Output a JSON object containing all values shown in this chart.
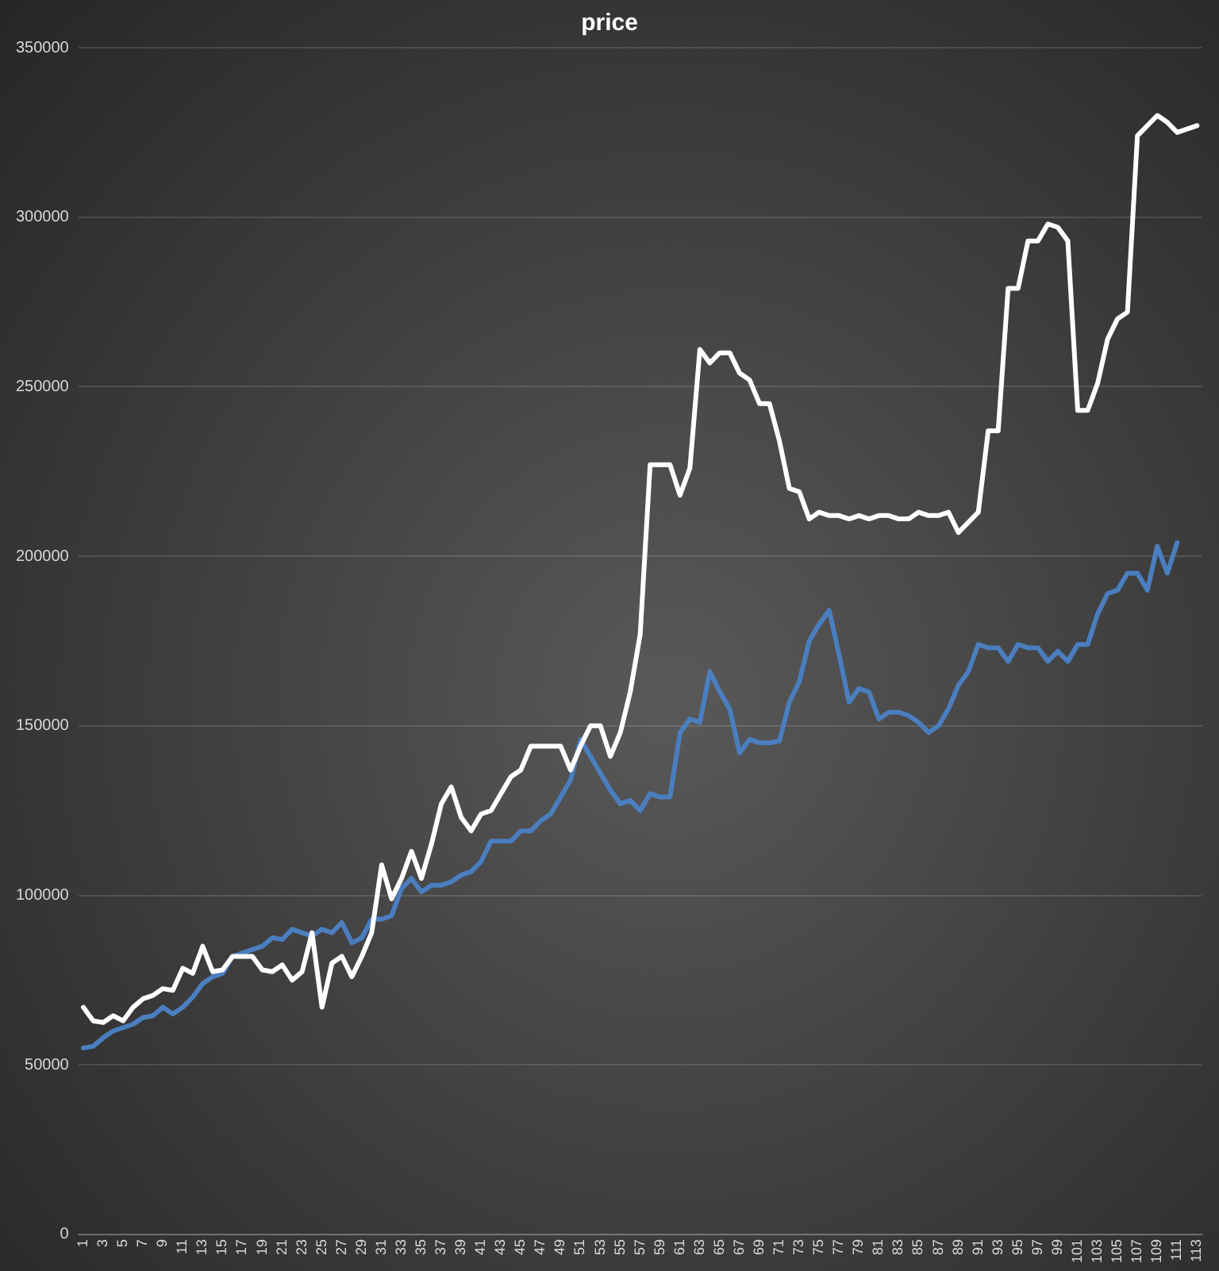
{
  "chart_data": {
    "type": "line",
    "title": "price",
    "categories": [
      "1",
      null,
      "3",
      null,
      "5",
      null,
      "7",
      null,
      "9",
      null,
      "11",
      null,
      "13",
      null,
      "15",
      null,
      "17",
      null,
      "19",
      null,
      "21",
      null,
      "23",
      null,
      "25",
      null,
      "27",
      null,
      "29",
      null,
      "31",
      null,
      "33",
      null,
      "35",
      null,
      "37",
      null,
      "39",
      null,
      "41",
      null,
      "43",
      null,
      "45",
      null,
      "47",
      null,
      "49",
      null,
      "51",
      null,
      "53",
      null,
      "55",
      null,
      "57",
      null,
      "59",
      null,
      "61",
      null,
      "63",
      null,
      "65",
      null,
      "67",
      null,
      "69",
      null,
      "71",
      null,
      "73",
      null,
      "75",
      null,
      "77",
      null,
      "79",
      null,
      "81",
      null,
      "83",
      null,
      "85",
      null,
      "87",
      null,
      "89",
      null,
      "91",
      null,
      "93",
      null,
      "95",
      null,
      "97",
      null,
      "99",
      null,
      "101",
      null,
      "103",
      null,
      "105",
      null,
      "107",
      null,
      "109",
      null,
      "111",
      null,
      "113"
    ],
    "series": [
      {
        "color": "#ffffff",
        "values": [
          67000,
          63000,
          62500,
          64500,
          63000,
          67000,
          69500,
          70500,
          72500,
          72000,
          78500,
          77000,
          85000,
          77500,
          78000,
          82000,
          82000,
          82000,
          78000,
          77500,
          79500,
          75000,
          77500,
          89000,
          67000,
          80000,
          82000,
          76000,
          82000,
          89000,
          109000,
          99000,
          105000,
          113000,
          105000,
          115000,
          127000,
          132000,
          123000,
          119000,
          124000,
          125000,
          130000,
          135000,
          137000,
          144000,
          144000,
          144000,
          144000,
          137000,
          144000,
          150000,
          150000,
          141000,
          148000,
          160000,
          177000,
          227000,
          227000,
          227000,
          218000,
          226000,
          261000,
          257000,
          260000,
          260000,
          254000,
          252000,
          245000,
          245000,
          234000,
          220000,
          219000,
          211000,
          213000,
          212000,
          212000,
          211000,
          212000,
          211000,
          212000,
          212000,
          211000,
          211000,
          213000,
          212000,
          212000,
          213000,
          207000,
          210000,
          213000,
          237000,
          237000,
          279000,
          279000,
          293000,
          293000,
          298000,
          297000,
          293000,
          243000,
          243000,
          251000,
          264000,
          270000,
          272000,
          324000,
          327000,
          330000,
          328000,
          325000,
          326000,
          327000
        ]
      },
      {
        "color": "#4a7ebf",
        "values": [
          55000,
          55500,
          58000,
          60000,
          61000,
          62000,
          64000,
          64500,
          67000,
          65000,
          67000,
          70000,
          74000,
          76000,
          77000,
          82000,
          83000,
          84000,
          85000,
          87500,
          87000,
          90000,
          89000,
          88000,
          90000,
          89000,
          92000,
          86000,
          87500,
          93000,
          93000,
          94000,
          102000,
          105000,
          101000,
          103000,
          103000,
          104000,
          106000,
          107000,
          110000,
          116000,
          116000,
          116000,
          119000,
          119000,
          122000,
          124000,
          129000,
          134000,
          146000,
          141000,
          136000,
          131000,
          127000,
          128000,
          125000,
          130000,
          129000,
          129000,
          148000,
          152000,
          151000,
          166000,
          160000,
          155000,
          142000,
          146000,
          145000,
          145000,
          145500,
          157000,
          163000,
          175000,
          180000,
          184000,
          171000,
          157000,
          161000,
          160000,
          152000,
          154000,
          154000,
          153000,
          151000,
          148000,
          150000,
          155000,
          162000,
          166000,
          174000,
          173000,
          173000,
          169000,
          174000,
          173000,
          173000,
          169000,
          172000,
          169000,
          174000,
          174000,
          183000,
          189000,
          190000,
          195000,
          195000,
          190000,
          203000,
          195000,
          204000,
          null,
          null
        ]
      }
    ],
    "ylim": [
      0,
      350000
    ],
    "yticks": [
      0,
      50000,
      100000,
      150000,
      200000,
      250000,
      300000,
      350000
    ],
    "grid": "y",
    "legend": false,
    "marker": "none",
    "line_style": "solid"
  }
}
